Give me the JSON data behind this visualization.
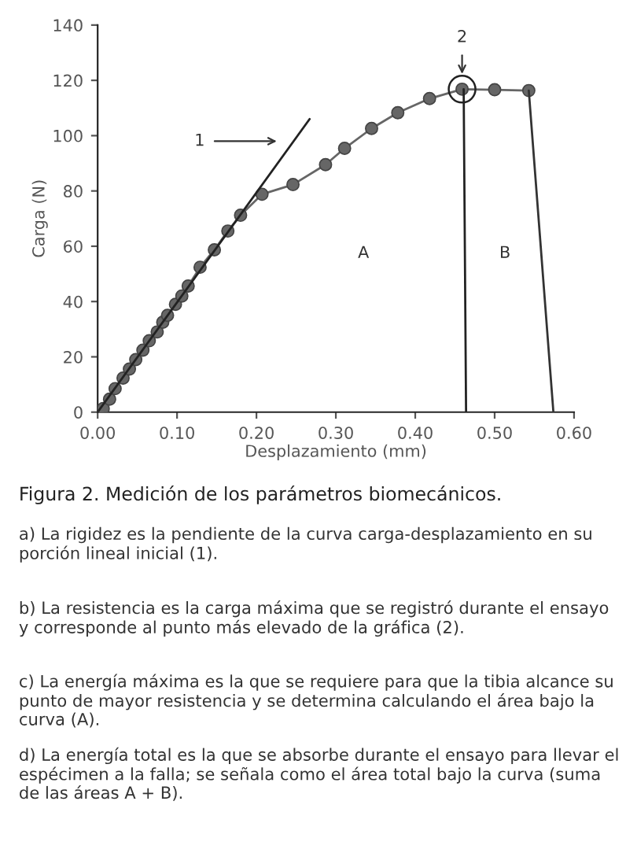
{
  "chart_data": {
    "type": "line",
    "title": "Figura 2. Medición de los parámetros biomecánicos.",
    "xlabel": "Desplazamiento (mm)",
    "ylabel": "Carga (N)",
    "xlim": [
      0,
      0.6
    ],
    "ylim": [
      0,
      140
    ],
    "xticks": [
      {
        "value": 0,
        "label": "0.00"
      },
      {
        "value": 0.1,
        "label": "0.10"
      },
      {
        "value": 0.2,
        "label": "0.20"
      },
      {
        "value": 0.3,
        "label": "0.30"
      },
      {
        "value": 0.4,
        "label": "0.40"
      },
      {
        "value": 0.5,
        "label": "0.50"
      },
      {
        "value": 0.6,
        "label": "0.60"
      }
    ],
    "yticks": [
      0,
      20,
      40,
      60,
      80,
      100,
      120,
      140
    ],
    "grid": false,
    "legend": false,
    "series": [
      {
        "marker": "circle",
        "color": "#666666",
        "x": [
          0,
          0.007,
          0.015,
          0.022,
          0.032,
          0.04,
          0.048,
          0.057,
          0.065,
          0.075,
          0.082,
          0.088,
          0.098,
          0.106,
          0.114,
          0.129,
          0.147,
          0.164,
          0.18,
          0.207,
          0.246,
          0.287,
          0.311,
          0.345,
          0.378,
          0.418,
          0.459,
          0.5,
          0.543
        ],
        "values": [
          0,
          1.3,
          4.7,
          8.5,
          12.3,
          15.6,
          19,
          22.4,
          25.8,
          29,
          32.5,
          35,
          39,
          42,
          45.6,
          52.4,
          58.7,
          65.5,
          71.2,
          78.8,
          82.3,
          89.5,
          95.4,
          102.6,
          108.3,
          113.4,
          116.8,
          116.6,
          116.3
        ]
      },
      {
        "marker": "none",
        "color": "#333333",
        "x": [
          0.543,
          0.574
        ],
        "values": [
          116.3,
          0
        ]
      },
      {
        "marker": "none",
        "color": "#222222",
        "x": [
          0.461,
          0.464
        ],
        "values": [
          116.8,
          0
        ]
      },
      {
        "marker": "none",
        "color": "#222222",
        "x": [
          0,
          0.267
        ],
        "values": [
          0,
          106
        ]
      },
      {
        "type": "scatter",
        "marker": "circle",
        "color": "#222222",
        "x": [
          0.459
        ],
        "values": [
          116.8
        ]
      }
    ],
    "annotations": [
      "1",
      {
        "text": "2",
        "x": 0.459,
        "y": 116.8
      },
      "A",
      "B",
      "a) La rigidez es la pendiente de la curva carga-desplazamiento en su porción lineal inicial (1).",
      "b) La resistencia es la carga máxima que se registró durante el ensayo y corresponde al punto más elevado de la gráfica (2).",
      "c) La energía máxima es la que se requiere para que la tibia alcance su punto de mayor resistencia y se determina calculando el área bajo la curva (A).",
      "d) La energía total es la que se absorbe durante el ensayo para llevar el espécimen a la falla; se señala como el área total bajo la curva (suma de las áreas A + B)."
    ]
  }
}
